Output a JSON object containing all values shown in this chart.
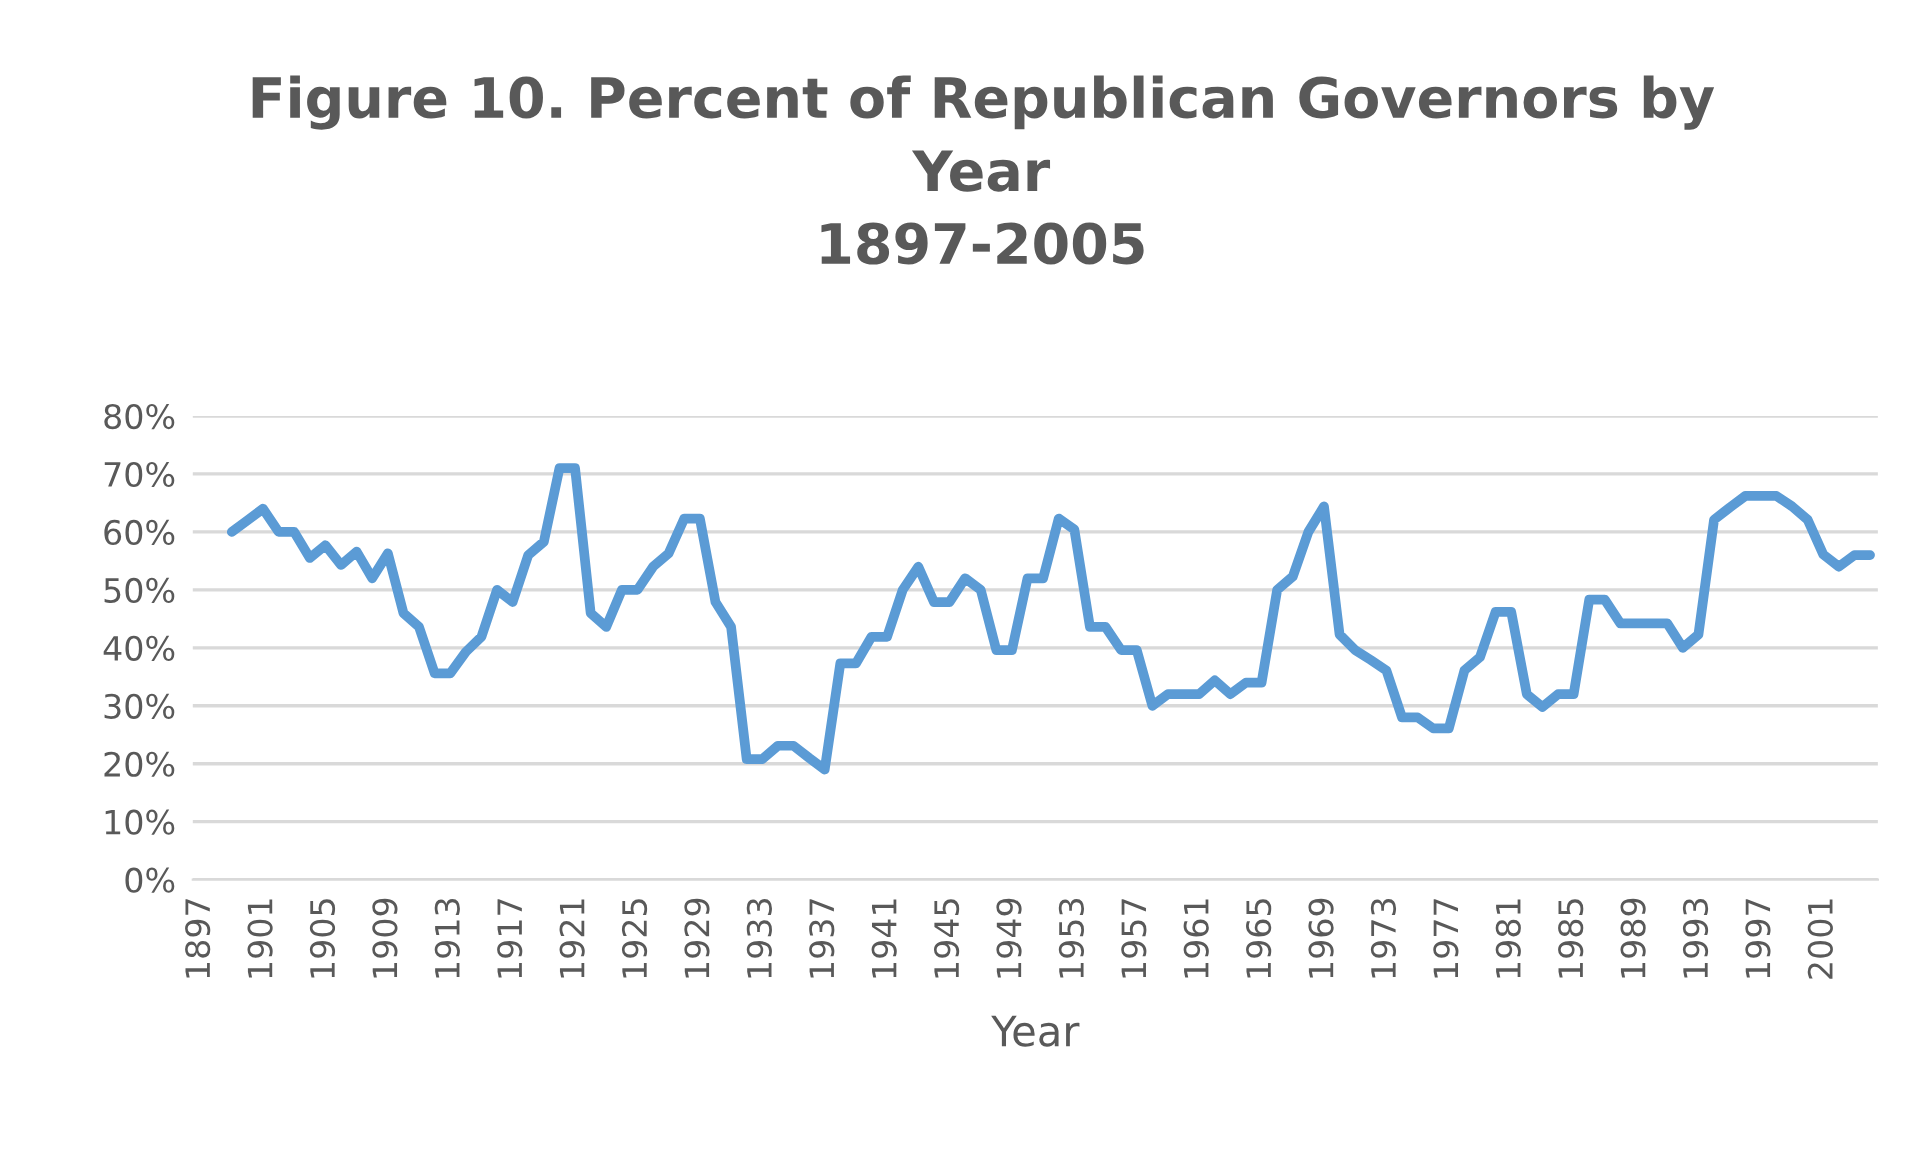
{
  "chart_data": {
    "type": "line",
    "title": "Figure 10. Percent of Republican Governors by\nYear\n1897-2005",
    "xlabel": "Year",
    "categories": [
      "1897",
      null,
      null,
      null,
      "1901",
      null,
      null,
      null,
      "1905",
      null,
      null,
      null,
      "1909",
      null,
      null,
      null,
      "1913",
      null,
      null,
      null,
      "1917",
      null,
      null,
      null,
      "1921",
      null,
      null,
      null,
      "1925",
      null,
      null,
      null,
      "1929",
      null,
      null,
      null,
      "1933",
      null,
      null,
      null,
      "1937",
      null,
      null,
      null,
      "1941",
      null,
      null,
      null,
      "1945",
      null,
      null,
      null,
      "1949",
      null,
      null,
      null,
      "1953",
      null,
      null,
      null,
      "1957",
      null,
      null,
      null,
      "1961",
      null,
      null,
      null,
      "1965",
      null,
      null,
      null,
      "1969",
      null,
      null,
      null,
      "1973",
      null,
      null,
      null,
      "1977",
      null,
      null,
      null,
      "1981",
      null,
      null,
      null,
      "1985",
      null,
      null,
      null,
      "1989",
      null,
      null,
      null,
      "1993",
      null,
      null,
      null,
      "1997",
      null,
      null,
      null,
      "2001",
      null,
      null,
      null
    ],
    "series": [
      {
        "color": "#5b9bd5",
        "values": [
          null,
          null,
          60,
          62,
          64,
          60,
          60,
          55.5,
          57.7,
          54.3,
          56.6,
          52,
          56.3,
          46,
          43.6,
          35.6,
          35.6,
          39.3,
          41.9,
          50,
          47.9,
          56,
          58.3,
          71,
          71,
          46,
          43.6,
          50,
          50,
          54,
          56.3,
          62.3,
          62.3,
          47.9,
          43.6,
          20.8,
          20.8,
          23.1,
          23.1,
          21,
          19,
          37.3,
          37.3,
          41.9,
          41.9,
          50,
          54,
          47.9,
          47.9,
          52,
          50,
          39.6,
          39.6,
          52,
          52,
          62.3,
          60.4,
          43.6,
          43.6,
          39.6,
          39.6,
          30,
          32,
          32,
          32,
          34.4,
          32,
          34,
          34,
          50,
          52.3,
          60,
          64.4,
          42.3,
          39.6,
          37.9,
          36.1,
          28,
          28,
          26.1,
          26.1,
          36.1,
          38.4,
          46.2,
          46.2,
          32,
          29.8,
          32,
          32,
          48.3,
          48.3,
          44.2,
          44.2,
          44.2,
          44.2,
          40,
          42.3,
          62.1,
          64.2,
          66.2,
          66.2,
          66.2,
          64.4,
          62.1,
          56.1,
          54,
          56,
          56
        ]
      }
    ],
    "ylim": [
      0,
      80
    ],
    "yticks": [
      {
        "value": 0,
        "label": "0%"
      },
      {
        "value": 10,
        "label": "10%"
      },
      {
        "value": 20,
        "label": "20%"
      },
      {
        "value": 30,
        "label": "30%"
      },
      {
        "value": 40,
        "label": "40%"
      },
      {
        "value": 50,
        "label": "50%"
      },
      {
        "value": 60,
        "label": "60%"
      },
      {
        "value": 70,
        "label": "70%"
      },
      {
        "value": 80,
        "label": "80%"
      }
    ],
    "grid": "y",
    "marker": "none",
    "line_style": "solid"
  }
}
